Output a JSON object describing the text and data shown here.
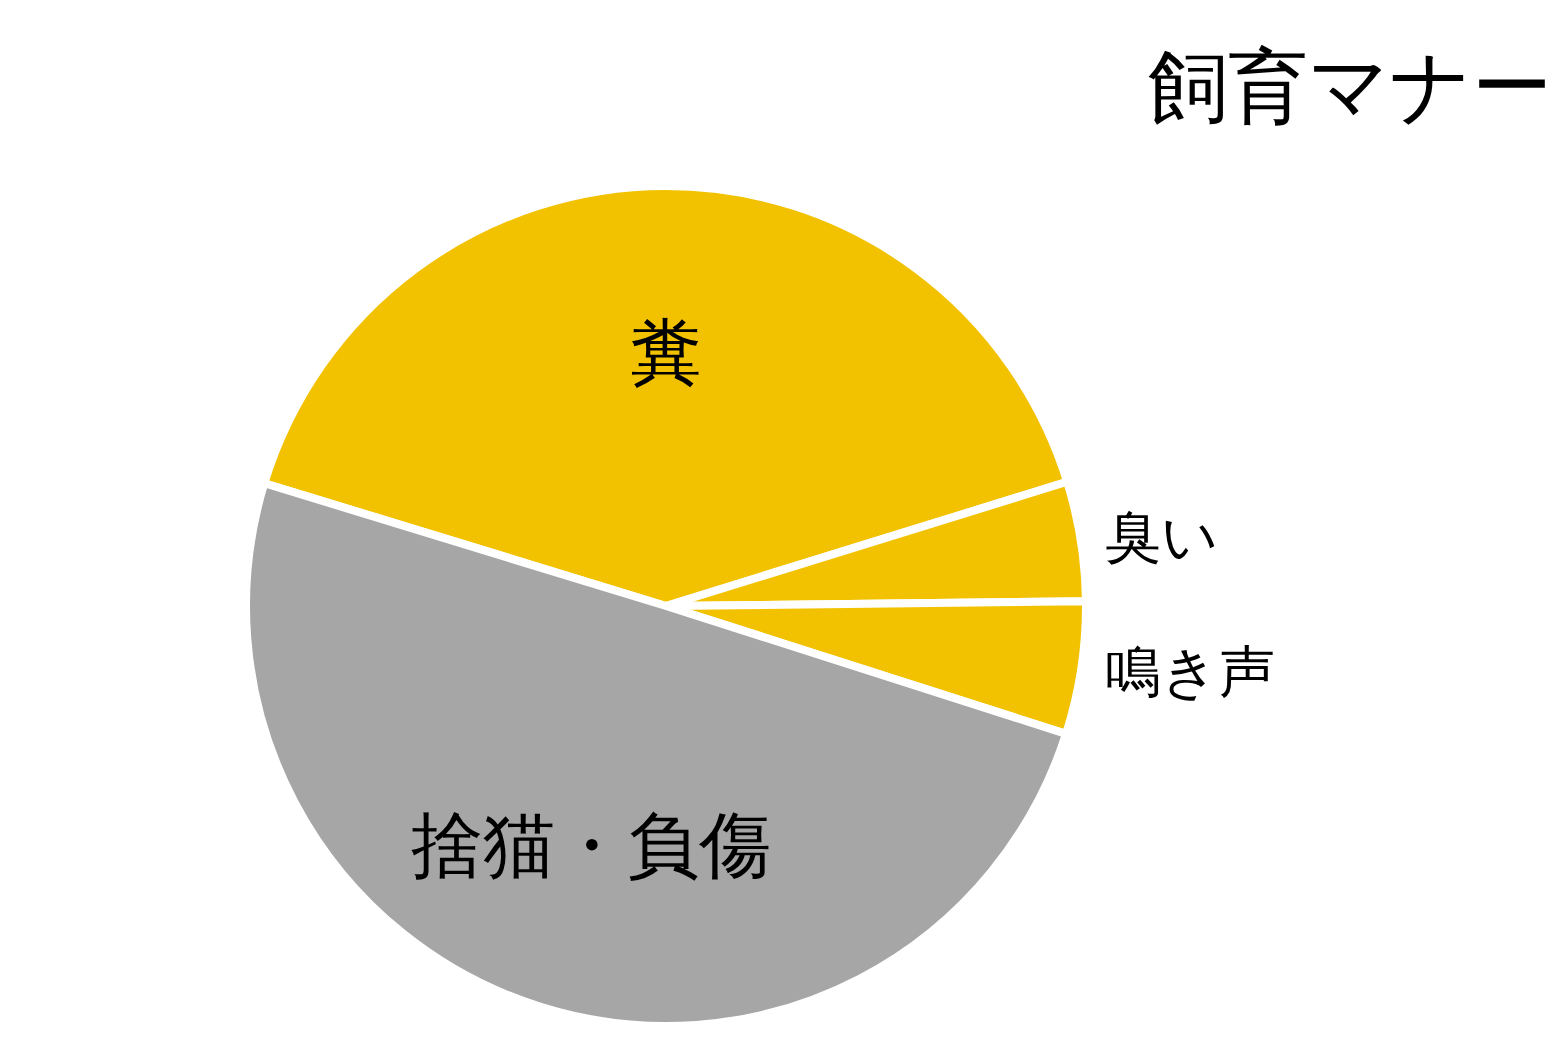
{
  "chart_data": {
    "type": "pie",
    "title": "飼育マナー",
    "categories": [
      "糞",
      "臭い",
      "鳴き声",
      "捨猫・負傷"
    ],
    "values": [
      40.5,
      4.6,
      5.1,
      49.8
    ],
    "colors": [
      "#f2c200",
      "#f2c200",
      "#f2c200",
      "#a6a6a6"
    ]
  }
}
